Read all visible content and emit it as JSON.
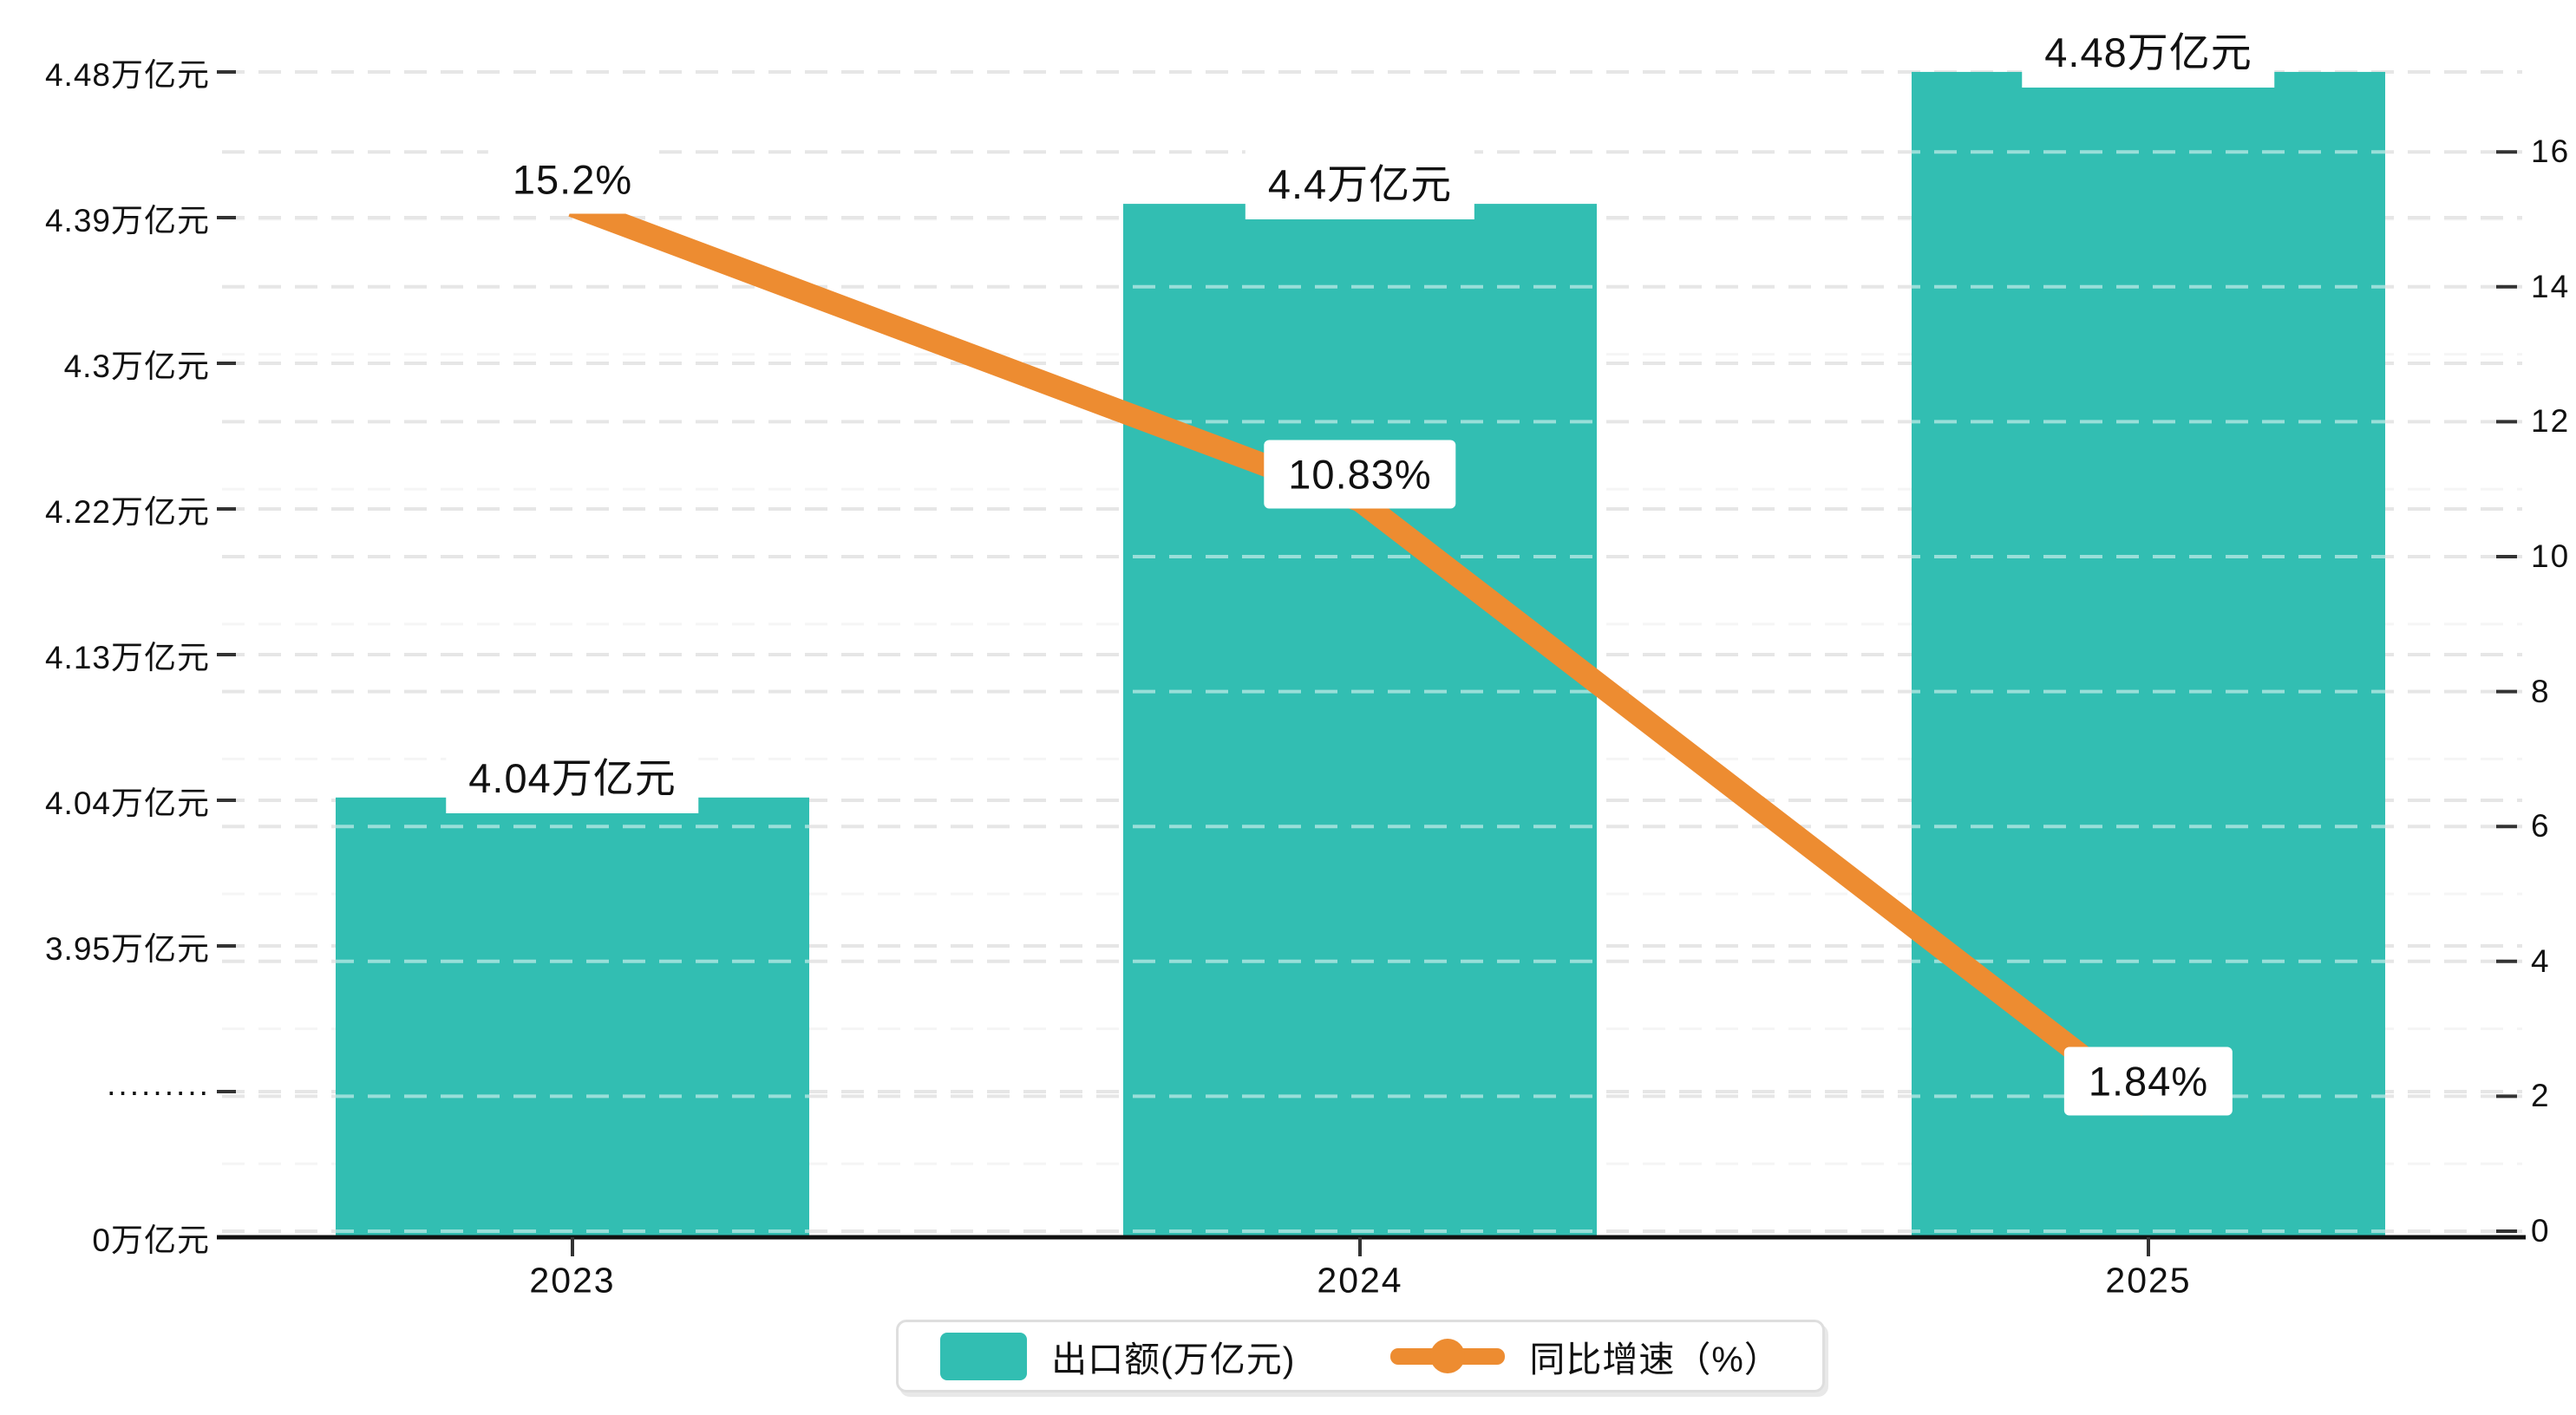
{
  "colors": {
    "bar_teal": "#32beb2",
    "line_orange": "#ed8c31",
    "axis_line": "#111111",
    "tick_mark": "#333333",
    "grid_major": "#e6e6e6",
    "grid_minor": "#f5f5f5",
    "grid_over_bar": "rgba(255,255,255,0.5)",
    "text": "#111111",
    "legend_border": "#dedede",
    "label_background": "#ffffff"
  },
  "chart_data": {
    "type": "bar+line combo",
    "title": "",
    "categories": [
      "2023",
      "2024",
      "2025"
    ],
    "series": [
      {
        "name": "出口额(万亿元)",
        "type": "bar",
        "axis": "left",
        "unit": "万亿元",
        "values": [
          4.04,
          4.4,
          4.48
        ],
        "data_labels": [
          "4.04万亿元",
          "4.4万亿元",
          "4.48万亿元"
        ],
        "color": "#32beb2"
      },
      {
        "name": "同比增速（%）",
        "type": "line",
        "axis": "right",
        "unit": "%",
        "values": [
          15.2,
          10.83,
          1.84
        ],
        "data_labels": [
          "15.2%",
          "10.83%",
          "1.84%"
        ],
        "color": "#ed8c31"
      }
    ],
    "left_axis": {
      "broken": true,
      "break_label": "·········",
      "tick_labels": [
        "4.48万亿元",
        "4.39万亿元",
        "4.3万亿元",
        "4.22万亿元",
        "4.13万亿元",
        "4.04万亿元",
        "3.95万亿元",
        "·········",
        "0万亿元"
      ],
      "range_note": "0, then break, then 3.95 to 4.48 in steps of 0.09"
    },
    "right_axis": {
      "tick_labels": [
        "16",
        "14",
        "12",
        "10",
        "8",
        "6",
        "4",
        "2",
        "0"
      ],
      "tick_values": [
        16,
        14,
        12,
        10,
        8,
        6,
        4,
        2,
        0
      ],
      "range": [
        0,
        16
      ],
      "step": 2
    },
    "x_axis": {
      "tick_labels": [
        "2023",
        "2024",
        "2025"
      ]
    },
    "legend": {
      "items": [
        {
          "label": "出口额(万亿元)",
          "swatch": "bar"
        },
        {
          "label": "同比增速（%）",
          "swatch": "line-dot"
        }
      ]
    },
    "grid": "dashed, on"
  }
}
